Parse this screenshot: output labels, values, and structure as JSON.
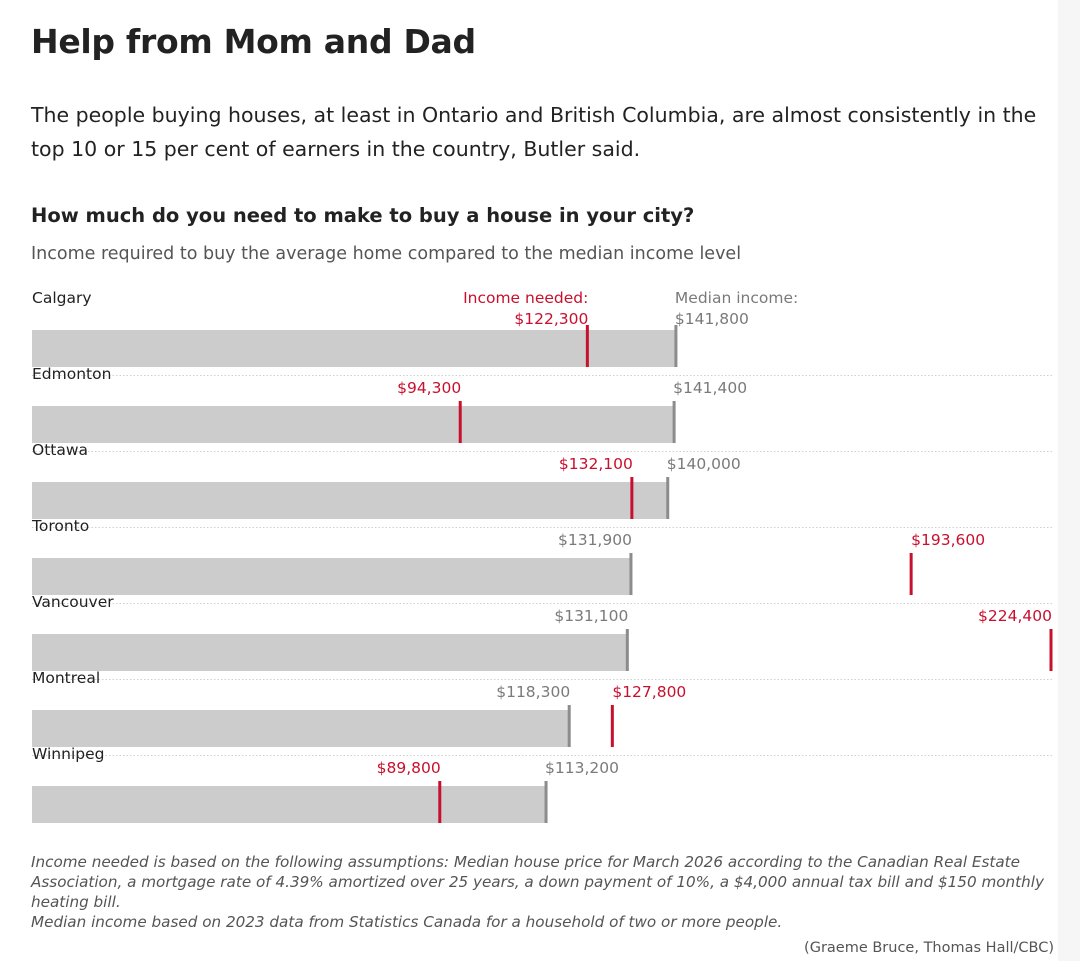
{
  "headline": "Help from Mom and Dad",
  "lede": "The people buying houses, at least in Ontario and British Columbia, are almost consistently in the top 10 or 15 per cent of earners in the country, Butler said.",
  "colors": {
    "bar": "#cccccc",
    "median_marker": "#8c8c8c",
    "needed_marker": "#c8102e",
    "median_label": "#7a7a7a",
    "needed_label": "#c8102e",
    "divider": "#cfcfcf"
  },
  "chart_data": {
    "type": "bar",
    "orientation": "horizontal",
    "title": "How much do you need to make to buy a house in your city?",
    "subtitle": "Income required to buy the average home compared to the median income level",
    "header_labels": {
      "needed": "Income needed:",
      "median": "Median income:"
    },
    "categories": [
      "Calgary",
      "Edmonton",
      "Ottawa",
      "Toronto",
      "Vancouver",
      "Montreal",
      "Winnipeg"
    ],
    "series": [
      {
        "name": "Median income",
        "values": [
          141800,
          141400,
          140000,
          131900,
          131100,
          118300,
          113200
        ],
        "labels": [
          "$141,800",
          "$141,400",
          "$140,000",
          "$131,900",
          "$131,100",
          "$118,300",
          "$113,200"
        ]
      },
      {
        "name": "Income needed",
        "values": [
          122300,
          94300,
          132100,
          193600,
          224400,
          127800,
          89800
        ],
        "labels": [
          "$122,300",
          "$94,300",
          "$132,100",
          "$193,600",
          "$224,400",
          "$127,800",
          "$89,800"
        ]
      }
    ],
    "xlim": [
      0,
      224400
    ],
    "grid": false,
    "legend": "inline labels"
  },
  "notes": [
    "Income needed is based on the following assumptions: Median house price for March 2026 according to the Canadian Real Estate Association, a mortgage rate of 4.39% amortized over 25 years, a down payment of 10%, a $4,000 annual tax bill and $150 monthly heating bill.",
    "Median income based on 2023 data from Statistics Canada for a household of two or more people."
  ],
  "credit": "(Graeme Bruce, Thomas Hall/CBC)"
}
